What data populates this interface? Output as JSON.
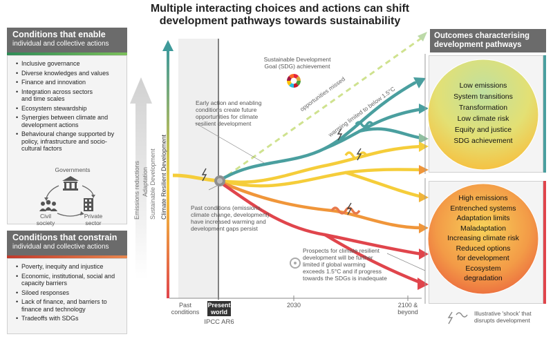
{
  "title": "Multiple interacting choices and actions can shift development pathways towards sustainability",
  "enable": {
    "heading": "Conditions that enable",
    "subheading": "individual and collective actions",
    "items": [
      "Inclusive governance",
      "Diverse knowledges and values",
      "Finance and innovation",
      "Integration across sectors and time scales",
      "Ecosystem stewardship",
      "Synergies between climate and development actions",
      "Behavioural change supported by policy, infrastructure and socio-cultural factors"
    ],
    "actors": {
      "governments": "Governments",
      "civil_society": "Civil society",
      "private_sector": "Private sector"
    }
  },
  "constrain": {
    "heading": "Conditions that constrain",
    "subheading": "individual and collective actions",
    "items": [
      "Poverty, inequity and injustice",
      "Economic, institutional, social and capacity barriers",
      "Siloed responses",
      "Lack of finance, and barriers to finance and technology",
      "Tradeoffs with SDGs"
    ]
  },
  "vertical_labels": {
    "crd": "Climate Resilient Development",
    "sd": "Sustainable Development",
    "adaptation": "Adaptation",
    "emissions": "Emissions reductions"
  },
  "annotations": {
    "sdg": "Sustainable Development Goal (SDG) achievement",
    "early_action": "Early action and enabling conditions create future opportunities for climate resilient development",
    "opportunities_missed": "opportunities missed",
    "warming_limited": "warming limited to below 1.5°C",
    "past_conditions": "Past conditions (emissions, climate change, development) have increased warming and development gaps persist",
    "prospects": "Prospects for climate resilient development will be further limited if global warming exceeds 1.5°C and if progress towards the SDGs is inadequate"
  },
  "outcomes": {
    "heading": "Outcomes characterising development pathways",
    "positive": [
      "Low emissions",
      "System transitions",
      "Transformation",
      "Low climate risk",
      "Equity and justice",
      "SDG achievement"
    ],
    "negative": [
      "High emissions",
      "Entrenched systems",
      "Adaptation limits",
      "Maladaptation",
      "Increasing climate risk",
      "Reduced options for development",
      "Ecosystem degradation"
    ]
  },
  "axis": {
    "past": "Past conditions",
    "present": "Present world",
    "ipcc": "IPCC AR6",
    "y2030": "2030",
    "y2100": "2100 & beyond"
  },
  "legend": {
    "shock": "Illustrative 'shock' that disrupts development"
  },
  "colors": {
    "header_grey": "#6b6b6b",
    "teal": "#3f9a9a",
    "yellow": "#f5cd3a",
    "orange": "#f0963a",
    "red": "#e0454c"
  }
}
